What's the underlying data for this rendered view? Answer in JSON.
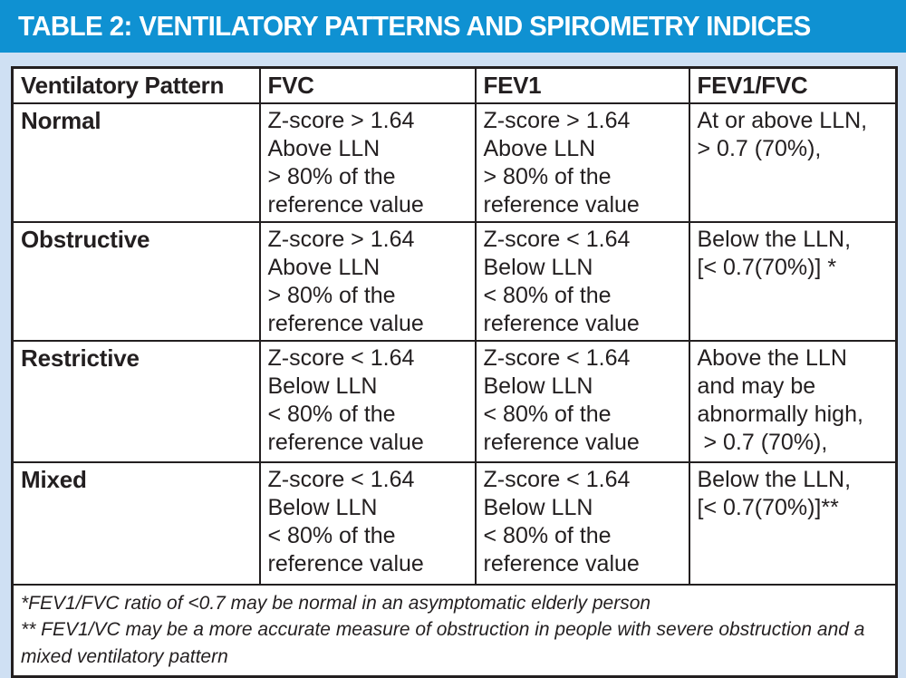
{
  "title": "TABLE 2: VENTILATORY PATTERNS AND SPIROMETRY INDICES",
  "table": {
    "columns": [
      "Ventilatory Pattern",
      "FVC",
      "FEV1",
      "FEV1/FVC"
    ],
    "rows": [
      {
        "pattern": "Normal",
        "fvc": "Z-score > 1.64\nAbove LLN\n> 80% of the\nreference value",
        "fev1": "Z-score > 1.64\nAbove LLN\n> 80% of the\nreference value",
        "fev1_fvc": "At or above LLN,\n> 0.7 (70%),"
      },
      {
        "pattern": "Obstructive",
        "fvc": "Z-score > 1.64\nAbove LLN\n> 80% of the\nreference value",
        "fev1": "Z-score < 1.64\nBelow LLN\n< 80% of the\nreference value",
        "fev1_fvc": "Below the LLN,\n[< 0.7(70%)] *"
      },
      {
        "pattern": "Restrictive",
        "fvc": "Z-score < 1.64\nBelow LLN\n< 80% of the\nreference value",
        "fev1": "Z-score < 1.64\nBelow LLN\n< 80% of the\nreference value",
        "fev1_fvc": "Above the LLN\nand may be\nabnormally high,\n > 0.7 (70%),"
      },
      {
        "pattern": "Mixed",
        "fvc": "Z-score < 1.64\nBelow LLN\n< 80% of the\nreference value",
        "fev1": "Z-score < 1.64\nBelow LLN\n< 80% of the\nreference value",
        "fev1_fvc": "Below the LLN,\n[< 0.7(70%)]**"
      }
    ],
    "footnotes": [
      "*FEV1/FVC ratio of <0.7 may be normal in an asymptomatic elderly person",
      "** FEV1/VC may be a more accurate measure of obstruction in people with severe obstruction and a mixed ventilatory pattern"
    ]
  },
  "colors": {
    "title_bar_bg": "#0f91d2",
    "page_bg": "#cfe0f3",
    "table_bg": "#ffffff",
    "border": "#231f20",
    "body_text": "#231f20",
    "title_text": "#ffffff"
  }
}
